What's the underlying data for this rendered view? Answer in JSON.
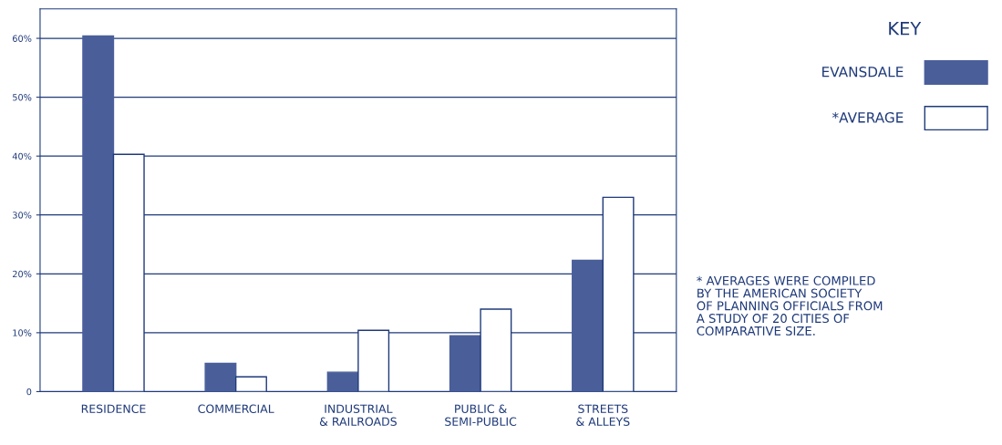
{
  "chart_data": {
    "type": "bar",
    "categories": [
      "RESIDENCE",
      "COMMERCIAL",
      "INDUSTRIAL\n& RAILROADS",
      "PUBLIC &\nSEMI-PUBLIC",
      "STREETS\n& ALLEYS"
    ],
    "series": [
      {
        "name": "EVANSDALE",
        "color": "#4a5f9a",
        "values": [
          60.4,
          4.8,
          3.3,
          9.5,
          22.3
        ]
      },
      {
        "name": "*AVERAGE",
        "color": "#ffffff",
        "values": [
          40.3,
          2.5,
          10.4,
          14.0,
          33.0
        ]
      }
    ],
    "ylim": [
      0,
      65
    ],
    "yticks": [
      0,
      {
        "value": 10,
        "label": "10%"
      },
      {
        "value": 20,
        "label": "20%"
      },
      {
        "value": 30,
        "label": "30%"
      },
      {
        "value": 40,
        "label": "40%"
      },
      {
        "value": 50,
        "label": "50%"
      },
      {
        "value": 60,
        "label": "60%"
      }
    ],
    "grid": "y",
    "legend": "right",
    "legend_title": "KEY",
    "annotations": [
      "* AVERAGES WERE COMPILED\nBY THE AMERICAN SOCIETY\nOF PLANNING OFFICIALS FROM\nA STUDY OF 20 CITIES OF\nCOMPARATIVE SIZE."
    ]
  }
}
